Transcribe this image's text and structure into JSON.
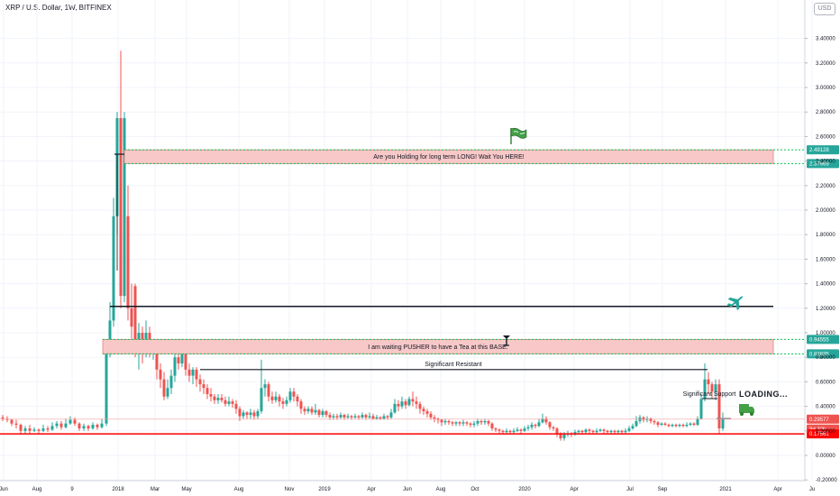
{
  "header": {
    "title": "XRP / U.S. Dollar, 1W, BITFINEX",
    "currency_button": "USD"
  },
  "chart_data": {
    "type": "candlestick",
    "ylim": [
      -0.1,
      3.6
    ],
    "yticks": [
      "3.40000",
      "3.20000",
      "3.00000",
      "2.80000",
      "2.60000",
      "2.40000",
      "2.20000",
      "2.00000",
      "1.80000",
      "1.60000",
      "1.40000",
      "1.20000",
      "1.00000",
      "0.80000",
      "0.60000",
      "0.40000",
      "0.20000",
      "0.00000",
      "-0.20000"
    ],
    "ytick_values": [
      3.4,
      3.2,
      3.0,
      2.8,
      2.6,
      2.4,
      2.2,
      2.0,
      1.8,
      1.6,
      1.4,
      1.2,
      1.0,
      0.8,
      0.6,
      0.4,
      0.2,
      0.0,
      -0.2
    ],
    "xticks": [
      "Jun",
      "Aug",
      "9",
      "2018",
      "Mar",
      "May",
      "Aug",
      "Nov",
      "2019",
      "Apr",
      "Jun",
      "Aug",
      "Oct",
      "2020",
      "Apr",
      "Jul",
      "Sep",
      "2021",
      "Apr",
      "Ju"
    ],
    "annotations": {
      "zone_top": {
        "label": "Are you Holding for long term LONG! Wait You HERE!",
        "top": 2.49128,
        "bottom": 2.37969,
        "top_tag": "2.49128",
        "bottom_tag": "2.37969"
      },
      "zone_mid": {
        "label": "I am waiting PUSHER to have a Tea at this BASE.",
        "top": 0.9455,
        "bottom": 0.8283,
        "top_tag": "0.94555",
        "bottom_tag": "0.82835"
      },
      "resistance": {
        "label": "Significant Resistant",
        "value": 0.7
      },
      "support": {
        "label": "Significant Support"
      },
      "black_line": {
        "value": 1.215
      },
      "red_line": {
        "value": 0.17561,
        "tag": "0.17561"
      },
      "current_price": {
        "value": 0.29577,
        "tag": "0.29577",
        "countdown": "3d 22h"
      },
      "loading_text": "LOADING..."
    },
    "colors": {
      "up": "#26a69a",
      "down": "#ef5350",
      "zone_fill": "#f8c8c8",
      "zone_border": "#00c853",
      "red_line": "#ff0000"
    }
  }
}
